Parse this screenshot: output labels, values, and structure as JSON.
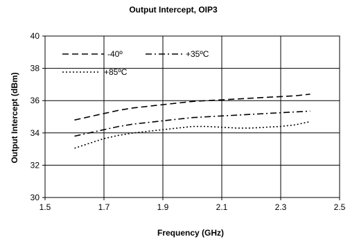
{
  "chart_data": {
    "type": "line",
    "title": "Output Intercept, OIP3",
    "xlabel": "Frequency (GHz)",
    "ylabel": "Output Intercept (dBm)",
    "xlim": [
      1.5,
      2.5
    ],
    "ylim": [
      30,
      40
    ],
    "xticks": [
      "1.5",
      "1.7",
      "1.9",
      "2.1",
      "2.3",
      "2.5"
    ],
    "yticks": [
      "30",
      "32",
      "34",
      "36",
      "38",
      "40"
    ],
    "grid": true,
    "legend_position": "top-left",
    "series": [
      {
        "name": "-40º",
        "style": "dashed",
        "color": "#000000",
        "x": [
          1.6,
          1.65,
          1.7,
          1.75,
          1.8,
          1.85,
          1.9,
          1.95,
          2.0,
          2.05,
          2.1,
          2.15,
          2.2,
          2.25,
          2.3,
          2.35,
          2.4
        ],
        "y": [
          34.8,
          35.0,
          35.2,
          35.4,
          35.55,
          35.65,
          35.75,
          35.85,
          35.95,
          36.0,
          36.05,
          36.1,
          36.15,
          36.2,
          36.25,
          36.3,
          36.4
        ]
      },
      {
        "name": "+35ºC",
        "style": "dashdot",
        "color": "#000000",
        "x": [
          1.6,
          1.65,
          1.7,
          1.75,
          1.8,
          1.85,
          1.9,
          1.95,
          2.0,
          2.05,
          2.1,
          2.15,
          2.2,
          2.25,
          2.3,
          2.35,
          2.4
        ],
        "y": [
          33.8,
          34.0,
          34.2,
          34.4,
          34.55,
          34.65,
          34.75,
          34.85,
          34.95,
          35.0,
          35.05,
          35.1,
          35.15,
          35.2,
          35.25,
          35.3,
          35.35
        ]
      },
      {
        "name": "+85ºC",
        "style": "dotted",
        "color": "#000000",
        "x": [
          1.6,
          1.65,
          1.7,
          1.75,
          1.8,
          1.85,
          1.9,
          1.95,
          2.0,
          2.05,
          2.1,
          2.15,
          2.2,
          2.25,
          2.3,
          2.35,
          2.4
        ],
        "y": [
          33.05,
          33.35,
          33.65,
          33.85,
          34.0,
          34.1,
          34.2,
          34.3,
          34.4,
          34.4,
          34.35,
          34.3,
          34.3,
          34.35,
          34.4,
          34.5,
          34.7
        ]
      }
    ]
  }
}
